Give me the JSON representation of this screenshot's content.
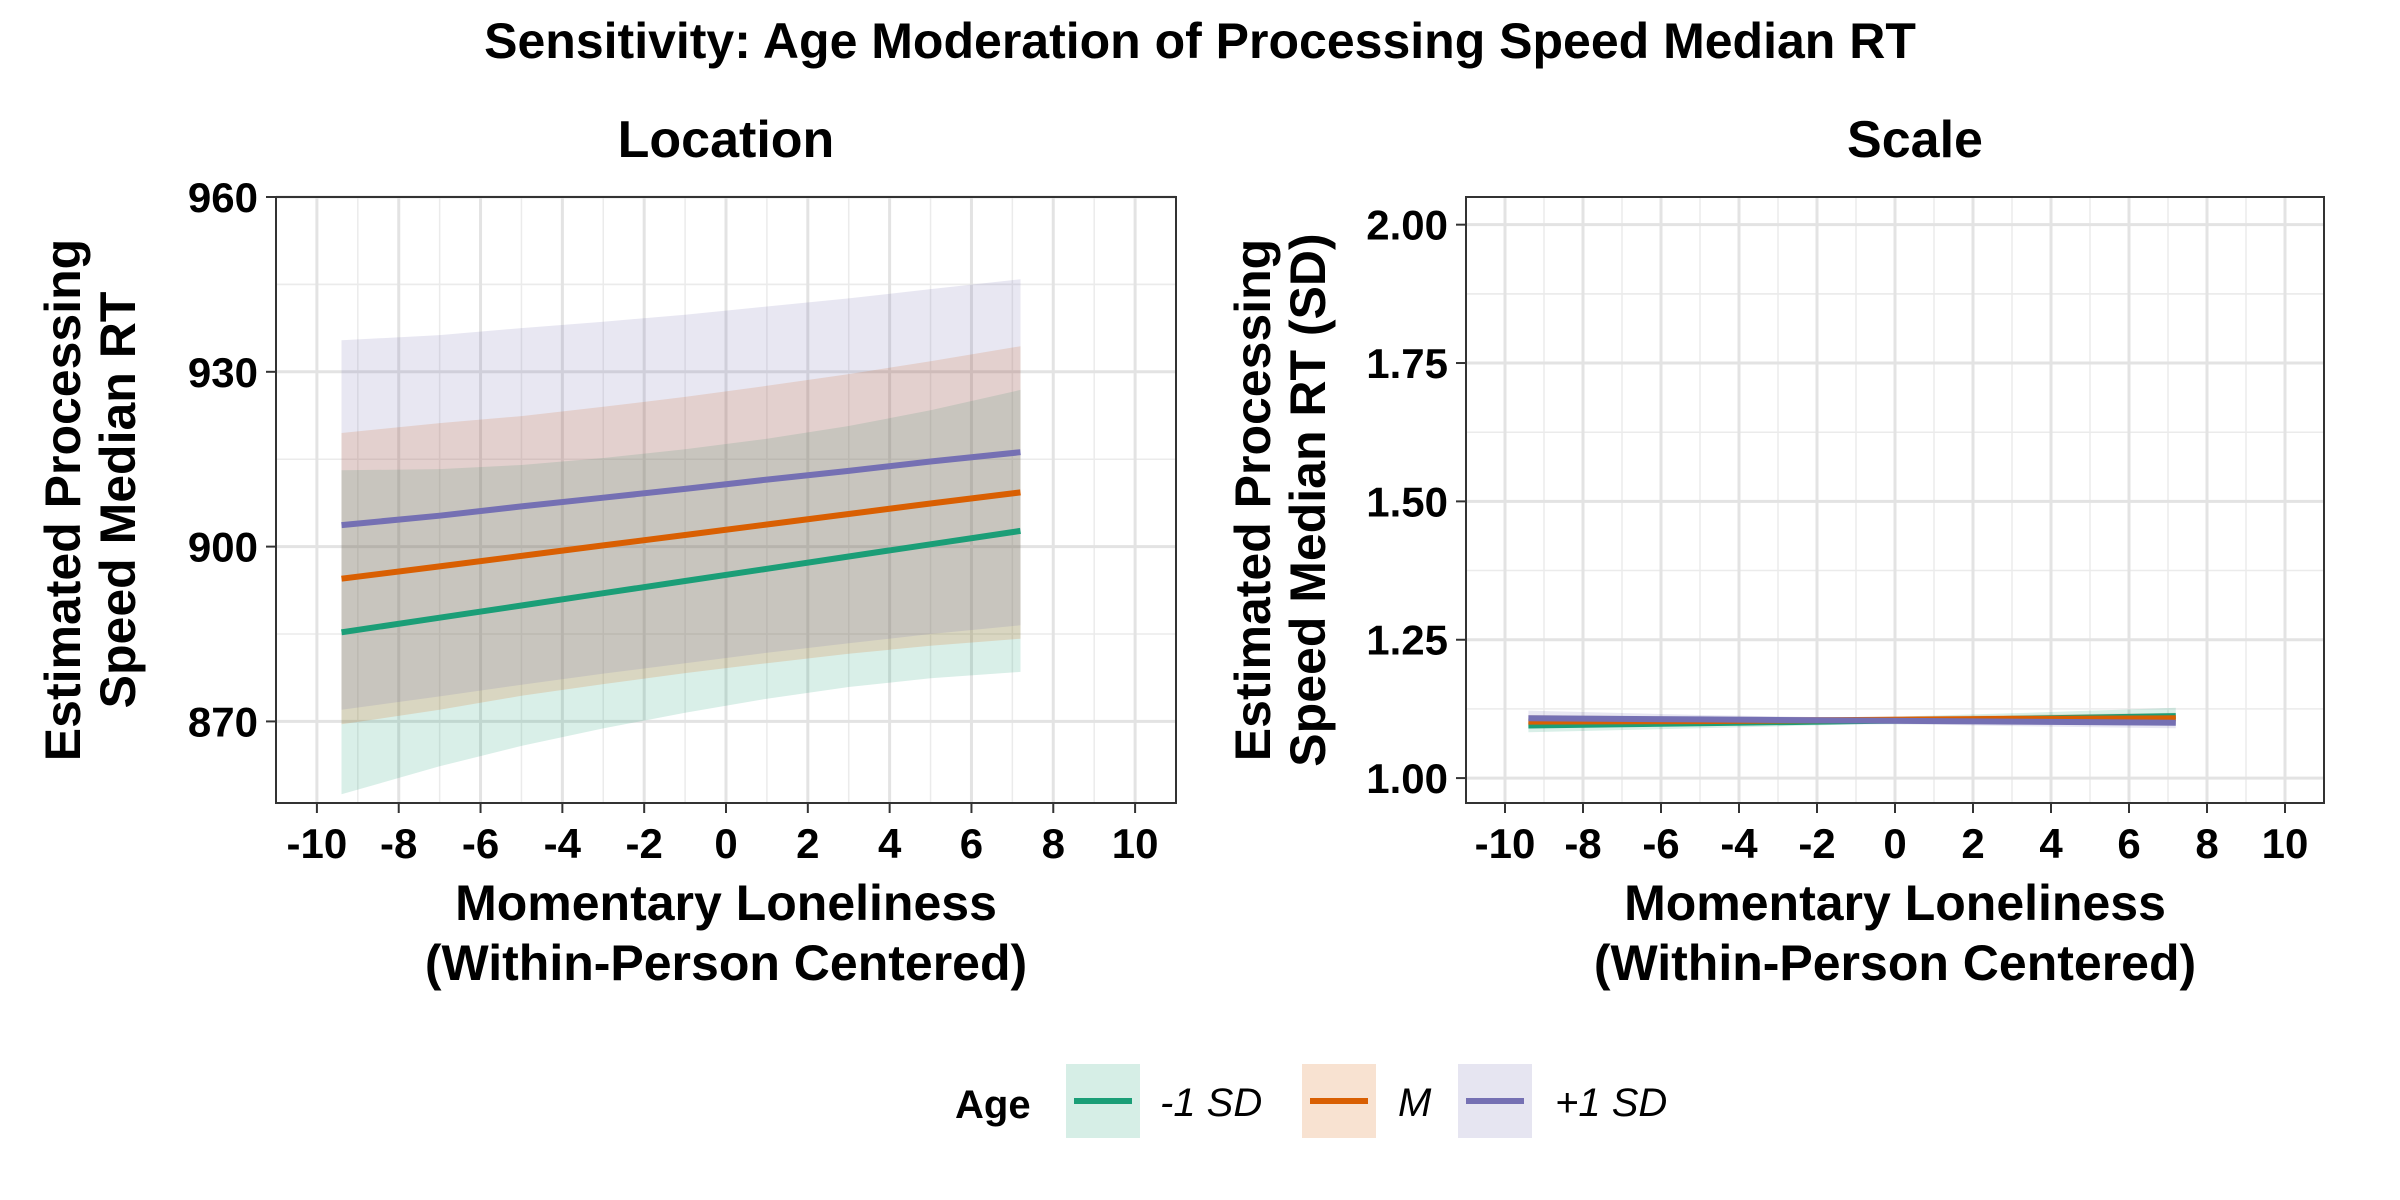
{
  "figure": {
    "title": "Sensitivity: Age Moderation of Processing Speed Median RT"
  },
  "legend": {
    "title": "Age",
    "placement": "bottom",
    "entries": [
      {
        "label": "-1 SD",
        "color": "#1b9e77"
      },
      {
        "label": "M",
        "color": "#d95f02"
      },
      {
        "label": "+1 SD",
        "color": "#7570b3"
      }
    ]
  },
  "chart_data": [
    {
      "type": "line",
      "title": "Location",
      "xlabel_lines": [
        "Momentary Loneliness",
        "(Within-Person Centered)"
      ],
      "ylabel_lines": [
        "Estimated Processing",
        "Speed Median RT"
      ],
      "xlim": [
        -11,
        11
      ],
      "ylim": [
        856,
        960
      ],
      "x_ticks": [
        -10,
        -8,
        -6,
        -4,
        -2,
        0,
        2,
        4,
        6,
        8,
        10
      ],
      "x_tick_labels": [
        "-10",
        "-8",
        "-6",
        "-4",
        "-2",
        "0",
        "2",
        "4",
        "6",
        "8",
        "10"
      ],
      "y_ticks": [
        870,
        900,
        930,
        960
      ],
      "y_tick_labels": [
        "870",
        "900",
        "930",
        "960"
      ],
      "grid": true,
      "x": [
        -9.4,
        -7,
        -5,
        -3,
        -1,
        1,
        3,
        5,
        7.2
      ],
      "series": [
        {
          "name": "-1 SD",
          "color": "#1b9e77",
          "y": [
            885.3,
            887.8,
            889.9,
            892.0,
            894.1,
            896.2,
            898.3,
            900.4,
            902.7
          ],
          "lower": [
            857.5,
            862.3,
            865.8,
            868.8,
            871.5,
            873.9,
            875.9,
            877.4,
            878.5
          ],
          "upper": [
            913.1,
            913.3,
            914.0,
            915.2,
            916.7,
            918.5,
            920.7,
            923.4,
            926.9
          ]
        },
        {
          "name": "M",
          "color": "#d95f02",
          "y": [
            894.5,
            896.6,
            898.4,
            900.2,
            902.0,
            903.8,
            905.6,
            907.4,
            909.3
          ],
          "lower": [
            869.5,
            872.0,
            874.4,
            876.4,
            878.3,
            880.0,
            881.6,
            883.0,
            884.2
          ],
          "upper": [
            919.5,
            921.2,
            922.4,
            924.0,
            925.7,
            927.6,
            929.6,
            931.8,
            934.4
          ]
        },
        {
          "name": "+1 SD",
          "color": "#7570b3",
          "y": [
            903.7,
            905.3,
            906.9,
            908.4,
            909.9,
            911.5,
            913.0,
            914.6,
            916.2
          ],
          "lower": [
            872.0,
            874.3,
            876.3,
            878.2,
            880.0,
            881.8,
            883.4,
            885.0,
            886.5
          ],
          "upper": [
            935.4,
            936.3,
            937.5,
            938.6,
            939.8,
            941.2,
            942.6,
            944.2,
            945.9
          ]
        }
      ]
    },
    {
      "type": "line",
      "title": "Scale",
      "xlabel_lines": [
        "Momentary Loneliness",
        "(Within-Person Centered)"
      ],
      "ylabel_lines": [
        "Estimated Processing",
        "Speed Median RT (SD)"
      ],
      "xlim": [
        -11,
        11
      ],
      "ylim": [
        0.955,
        2.05
      ],
      "x_ticks": [
        -10,
        -8,
        -6,
        -4,
        -2,
        0,
        2,
        4,
        6,
        8,
        10
      ],
      "x_tick_labels": [
        "-10",
        "-8",
        "-6",
        "-4",
        "-2",
        "0",
        "2",
        "4",
        "6",
        "8",
        "10"
      ],
      "y_ticks": [
        1.0,
        1.25,
        1.5,
        1.75,
        2.0
      ],
      "y_tick_labels": [
        "1.00",
        "1.25",
        "1.50",
        "1.75",
        "2.00"
      ],
      "grid": true,
      "x": [
        -9.4,
        -5,
        -1,
        3,
        7.2
      ],
      "series": [
        {
          "name": "-1 SD",
          "color": "#1b9e77",
          "y": [
            1.095,
            1.099,
            1.103,
            1.107,
            1.112
          ],
          "lower": [
            1.083,
            1.09,
            1.097,
            1.098,
            1.097
          ],
          "upper": [
            1.107,
            1.108,
            1.109,
            1.117,
            1.127
          ]
        },
        {
          "name": "M",
          "color": "#d95f02",
          "y": [
            1.102,
            1.103,
            1.105,
            1.107,
            1.108
          ],
          "lower": [
            1.09,
            1.095,
            1.1,
            1.1,
            1.098
          ],
          "upper": [
            1.114,
            1.111,
            1.11,
            1.114,
            1.118
          ]
        },
        {
          "name": "+1 SD",
          "color": "#7570b3",
          "y": [
            1.108,
            1.106,
            1.104,
            1.102,
            1.1
          ],
          "lower": [
            1.094,
            1.098,
            1.099,
            1.094,
            1.09
          ],
          "upper": [
            1.122,
            1.114,
            1.109,
            1.11,
            1.11
          ]
        }
      ]
    }
  ]
}
